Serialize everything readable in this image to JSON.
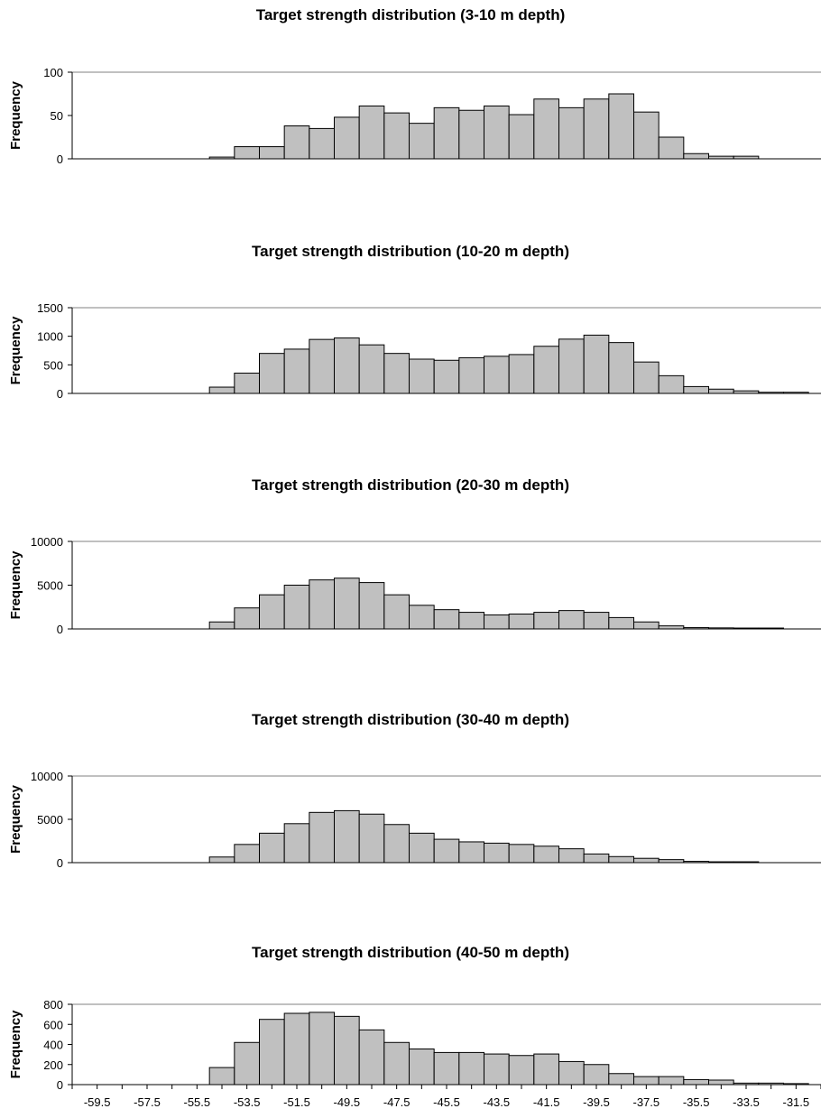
{
  "chart_data": [
    {
      "type": "bar",
      "title": "Target strength distribution (3-10 m depth)",
      "xlabel": "",
      "ylabel": "Frequency",
      "ylim": [
        0,
        100
      ],
      "yticks": [
        0,
        50,
        100
      ],
      "x": [
        -54.5,
        -53.5,
        -52.5,
        -51.5,
        -50.5,
        -49.5,
        -48.5,
        -47.5,
        -46.5,
        -45.5,
        -44.5,
        -43.5,
        -42.5,
        -41.5,
        -40.5,
        -39.5,
        -38.5,
        -37.5,
        -36.5,
        -35.5,
        -34.5,
        -33.5
      ],
      "values": [
        2,
        14,
        14,
        38,
        35,
        48,
        61,
        53,
        41,
        59,
        56,
        61,
        51,
        69,
        59,
        69,
        75,
        54,
        25,
        6,
        3,
        3
      ],
      "grid": false,
      "bar_color": "#c0c0c0"
    },
    {
      "type": "bar",
      "title": "Target strength distribution (10-20 m depth)",
      "xlabel": "",
      "ylabel": "Frequency",
      "ylim": [
        0,
        1500
      ],
      "yticks": [
        0,
        500,
        1000,
        1500
      ],
      "x": [
        -54.5,
        -53.5,
        -52.5,
        -51.5,
        -50.5,
        -49.5,
        -48.5,
        -47.5,
        -46.5,
        -45.5,
        -44.5,
        -43.5,
        -42.5,
        -41.5,
        -40.5,
        -39.5,
        -38.5,
        -37.5,
        -36.5,
        -35.5,
        -34.5,
        -33.5,
        -32.5,
        -31.5
      ],
      "values": [
        110,
        355,
        700,
        775,
        945,
        970,
        850,
        700,
        600,
        580,
        625,
        650,
        680,
        825,
        950,
        1020,
        890,
        550,
        310,
        120,
        75,
        45,
        20,
        20
      ],
      "grid": false,
      "bar_color": "#c0c0c0"
    },
    {
      "type": "bar",
      "title": "Target strength distribution (20-30 m depth)",
      "xlabel": "",
      "ylabel": "Frequency",
      "ylim": [
        0,
        10000
      ],
      "yticks": [
        0,
        5000,
        10000
      ],
      "x": [
        -54.5,
        -53.5,
        -52.5,
        -51.5,
        -50.5,
        -49.5,
        -48.5,
        -47.5,
        -46.5,
        -45.5,
        -44.5,
        -43.5,
        -42.5,
        -41.5,
        -40.5,
        -39.5,
        -38.5,
        -37.5,
        -36.5,
        -35.5,
        -34.5,
        -33.5,
        -32.5
      ],
      "values": [
        800,
        2400,
        3900,
        5000,
        5600,
        5800,
        5300,
        3900,
        2700,
        2200,
        1900,
        1600,
        1700,
        1900,
        2100,
        1900,
        1300,
        800,
        350,
        150,
        120,
        100,
        100
      ],
      "grid": false,
      "bar_color": "#c0c0c0"
    },
    {
      "type": "bar",
      "title": "Target strength distribution (30-40 m depth)",
      "xlabel": "",
      "ylabel": "Frequency",
      "ylim": [
        0,
        10000
      ],
      "yticks": [
        0,
        5000,
        10000
      ],
      "x": [
        -54.5,
        -53.5,
        -52.5,
        -51.5,
        -50.5,
        -49.5,
        -48.5,
        -47.5,
        -46.5,
        -45.5,
        -44.5,
        -43.5,
        -42.5,
        -41.5,
        -40.5,
        -39.5,
        -38.5,
        -37.5,
        -36.5,
        -35.5,
        -34.5,
        -33.5
      ],
      "values": [
        650,
        2100,
        3400,
        4500,
        5800,
        6000,
        5600,
        4400,
        3400,
        2700,
        2400,
        2250,
        2100,
        1900,
        1600,
        1000,
        700,
        500,
        350,
        150,
        100,
        100
      ],
      "grid": false,
      "bar_color": "#c0c0c0"
    },
    {
      "type": "bar",
      "title": "Target strength distribution (40-50 m depth)",
      "xlabel": "",
      "ylabel": "Frequency",
      "ylim": [
        0,
        800
      ],
      "yticks": [
        0,
        200,
        400,
        600,
        800
      ],
      "xtick_labels": [
        "-59.5",
        "-57.5",
        "-55.5",
        "-53.5",
        "-51.5",
        "-49.5",
        "-47.5",
        "-45.5",
        "-43.5",
        "-41.5",
        "-39.5",
        "-37.5",
        "-35.5",
        "-33.5",
        "-31.5"
      ],
      "x": [
        -54.5,
        -53.5,
        -52.5,
        -51.5,
        -50.5,
        -49.5,
        -48.5,
        -47.5,
        -46.5,
        -45.5,
        -44.5,
        -43.5,
        -42.5,
        -41.5,
        -40.5,
        -39.5,
        -38.5,
        -37.5,
        -36.5,
        -35.5,
        -34.5,
        -33.5,
        -32.5,
        -31.5
      ],
      "values": [
        170,
        420,
        650,
        710,
        720,
        680,
        545,
        420,
        355,
        320,
        320,
        305,
        290,
        305,
        230,
        200,
        110,
        80,
        80,
        50,
        45,
        15,
        15,
        10
      ],
      "grid": false,
      "bar_color": "#c0c0c0"
    }
  ]
}
